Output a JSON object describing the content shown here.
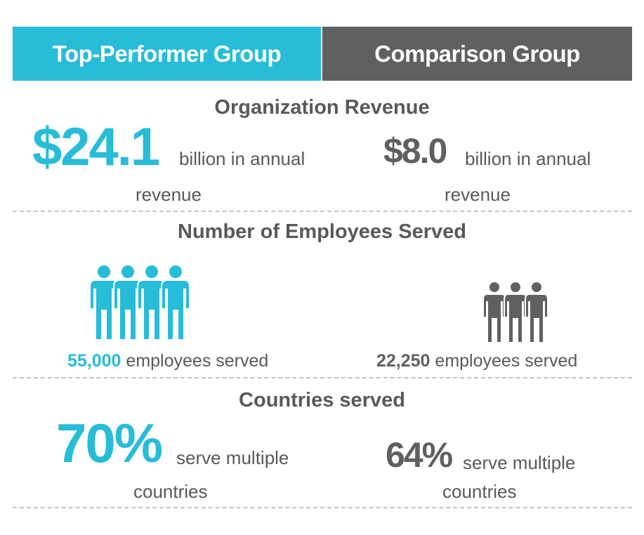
{
  "colors": {
    "top_performer": "#27bcd8",
    "comparison": "#5f6062",
    "text": "#58595b",
    "divider": "#c4c4c4"
  },
  "header": {
    "top_group": "Top-Performer Group",
    "comparison_group": "Comparison Group"
  },
  "revenue": {
    "title": "Organization Revenue",
    "top": {
      "value": "$24.1",
      "line1": "billion in annual",
      "line2": "revenue"
    },
    "comparison": {
      "value": "$8.0",
      "line1": "billion in annual",
      "line2": "revenue"
    }
  },
  "employees": {
    "title": "Number of Employees Served",
    "top": {
      "value": "55,000",
      "label": "employees served",
      "icon": "group-of-four-people-icon"
    },
    "comparison": {
      "value": "22,250",
      "label": "employees served",
      "icon": "group-of-three-people-icon"
    }
  },
  "countries": {
    "title": "Countries served",
    "top": {
      "value": "70%",
      "line1": "serve multiple",
      "line2": "countries"
    },
    "comparison": {
      "value": "64%",
      "line1": "serve multiple",
      "line2": "countries"
    }
  }
}
